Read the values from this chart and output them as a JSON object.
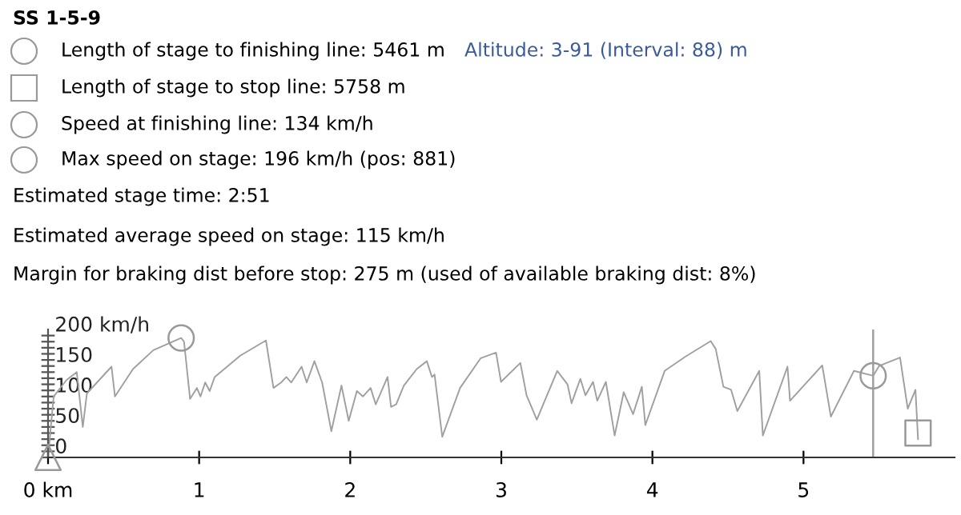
{
  "chart_data": {
    "type": "line",
    "title": "SS 1-5-9",
    "annotations": [
      "Length of stage to finishing line: 5461 m",
      "Length of stage to stop line: 5758 m",
      "Speed at finishing line: 134 km/h",
      "Max speed on stage: 196 km/h (pos: 881)",
      "Estimated stage time: 2:51",
      "Estimated average speed on stage: 115 km/h",
      "Margin for braking dist before stop: 275 m (used of available braking dist: 8%)",
      "Altitude: 3-91 (Interval: 88) m"
    ],
    "xlim": [
      0,
      6.0
    ],
    "xticks": [
      {
        "value": 0,
        "label": "0 km"
      },
      1,
      2,
      3,
      4,
      5
    ],
    "ylim": [
      0,
      210
    ],
    "yticks": [
      0,
      {
        "value": 10,
        "label": null
      },
      {
        "value": 20,
        "label": null
      },
      {
        "value": 30,
        "label": null
      },
      {
        "value": 40,
        "label": null
      },
      50,
      {
        "value": 60,
        "label": null
      },
      {
        "value": 70,
        "label": null
      },
      {
        "value": 80,
        "label": null
      },
      {
        "value": 90,
        "label": null
      },
      100,
      {
        "value": 110,
        "label": null
      },
      {
        "value": 120,
        "label": null
      },
      {
        "value": 130,
        "label": null
      },
      {
        "value": 140,
        "label": null
      },
      150,
      {
        "value": 160,
        "label": null
      },
      {
        "value": 170,
        "label": null
      },
      {
        "value": 180,
        "label": null
      },
      {
        "value": 190,
        "label": null
      },
      {
        "value": 200,
        "label": "200 km/h"
      }
    ],
    "ref_lines": [
      {
        "axis": "x",
        "value": 5.461,
        "color": "#a0a0a0"
      }
    ],
    "series": [
      {
        "color": "#a0a0a0",
        "x": [
          0,
          0.037,
          0.122,
          0.19,
          0.23,
          0.257,
          0.42,
          0.443,
          0.562,
          0.697,
          0.881,
          0.9,
          0.94,
          0.985,
          1.009,
          1.04,
          1.07,
          1.103,
          1.272,
          1.442,
          1.492,
          1.543,
          1.577,
          1.61,
          1.678,
          1.712,
          1.763,
          1.814,
          1.875,
          1.942,
          1.99,
          2.044,
          2.084,
          2.135,
          2.169,
          2.247,
          2.27,
          2.304,
          2.355,
          2.44,
          2.507,
          2.541,
          2.558,
          2.609,
          2.727,
          2.864,
          2.965,
          2.998,
          3.126,
          3.167,
          3.235,
          3.37,
          3.438,
          3.465,
          3.523,
          3.557,
          3.607,
          3.635,
          3.692,
          3.75,
          3.81,
          3.872,
          3.93,
          3.953,
          4.081,
          4.216,
          4.386,
          4.419,
          4.47,
          4.521,
          4.562,
          4.707,
          4.731,
          4.894,
          4.911,
          4.995,
          5.124,
          5.181,
          5.334,
          5.461,
          5.5,
          5.639,
          5.69,
          5.741,
          5.758
        ],
        "values": [
          0,
          100,
          127,
          140,
          50,
          105,
          149,
          100,
          145,
          176,
          196,
          190,
          96,
          114,
          100,
          123,
          109,
          132,
          167,
          192,
          114,
          123,
          132,
          123,
          149,
          123,
          158,
          123,
          43,
          118,
          60,
          109,
          100,
          114,
          87,
          132,
          83,
          87,
          118,
          145,
          158,
          132,
          136,
          34,
          114,
          163,
          172,
          124,
          155,
          102,
          62,
          142,
          120,
          89,
          129,
          102,
          124,
          93,
          124,
          36,
          107,
          71,
          116,
          53,
          142,
          165,
          191,
          178,
          116,
          111,
          76,
          142,
          36,
          149,
          93,
          116,
          151,
          67,
          142,
          134,
          150,
          164,
          80,
          111,
          30
        ]
      },
      {
        "type": "scatter",
        "color": "#999999",
        "marker": "triangle",
        "x": [
          0
        ],
        "values": [
          0
        ]
      },
      {
        "type": "scatter",
        "color": "#999999",
        "marker": "circle",
        "x": [
          0.881
        ],
        "values": [
          196
        ]
      },
      {
        "type": "scatter",
        "color": "#999999",
        "marker": "circle",
        "x": [
          5.461
        ],
        "values": [
          134
        ]
      },
      {
        "type": "scatter",
        "color": "#999999",
        "marker": "square",
        "x": [
          5.758
        ],
        "values": [
          40
        ]
      }
    ]
  }
}
